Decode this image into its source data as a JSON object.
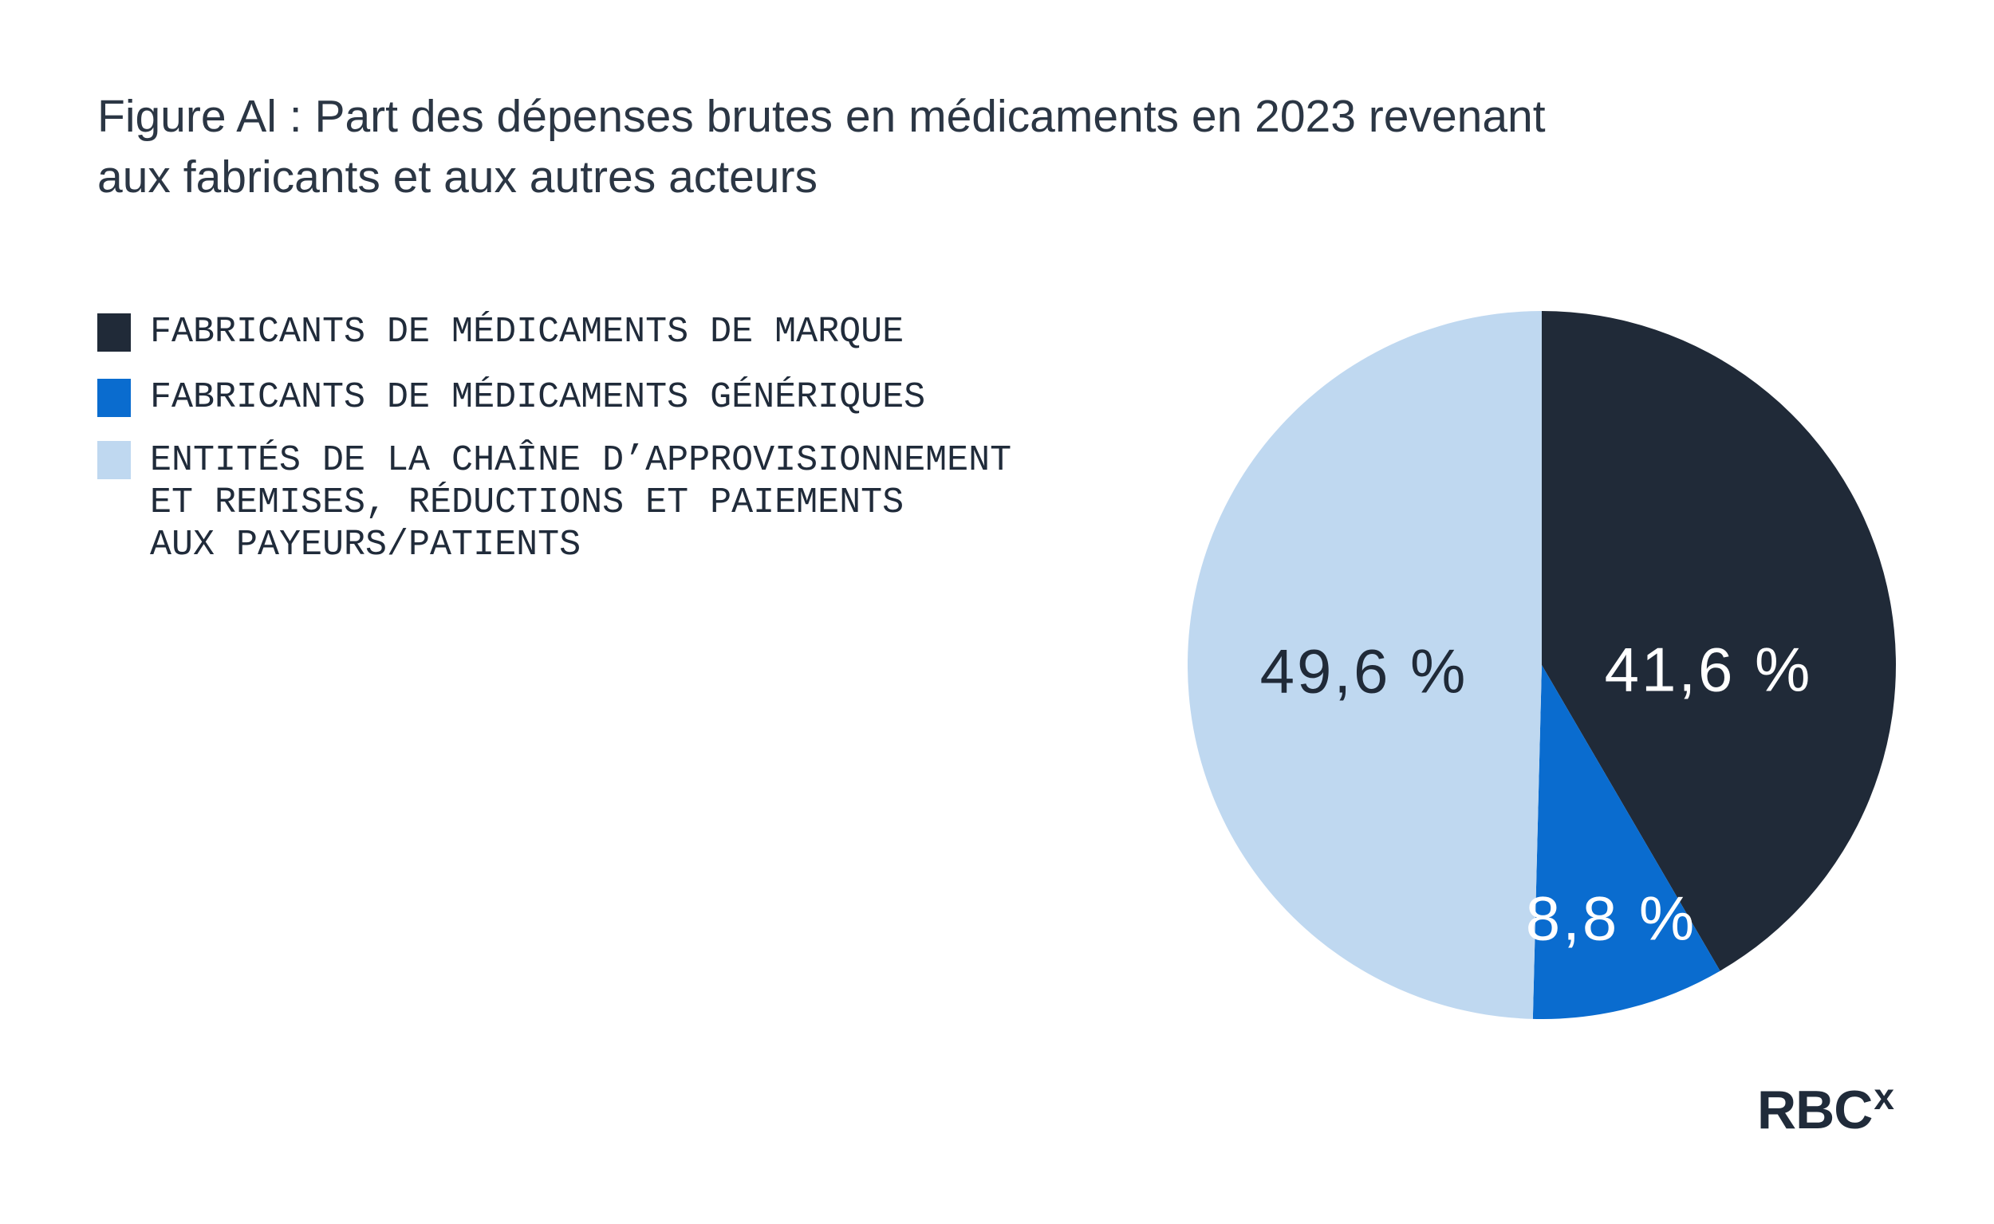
{
  "figure": {
    "title_lines": [
      "Figure Al : Part des dépenses brutes en médicaments en 2023 revenant",
      "aux fabricants et aux autres acteurs"
    ]
  },
  "legend": {
    "items": [
      {
        "color": "#202a38",
        "lines": [
          "FABRICANTS DE MÉDICAMENTS DE MARQUE"
        ]
      },
      {
        "color": "#0a6ccf",
        "lines": [
          "FABRICANTS DE MÉDICAMENTS GÉNÉRIQUES"
        ]
      },
      {
        "color": "#bfd8f0",
        "lines": [
          "ENTITÉS DE LA CHAÎNE D’APPROVISIONNEMENT",
          "ET REMISES, RÉDUCTIONS ET PAIEMENTS",
          "AUX PAYEURS/PATIENTS"
        ]
      }
    ]
  },
  "chart_data": {
    "type": "pie",
    "title": "Part des dépenses brutes en médicaments en 2023 revenant aux fabricants et aux autres acteurs",
    "start_angle_deg": 0,
    "direction": "clockwise",
    "legend_position": "left",
    "categories": [
      "Fabricants de médicaments de marque",
      "Fabricants de médicaments génériques",
      "Entités de la chaîne d’approvisionnement et remises, réductions et paiements aux payeurs/patients"
    ],
    "values": [
      41.6,
      8.8,
      49.6
    ],
    "slices": [
      {
        "label": "Fabricants de médicaments de marque",
        "value": 41.6,
        "display": "41,6 %",
        "color": "#202a38",
        "label_color": "#ffffff"
      },
      {
        "label": "Fabricants de médicaments génériques",
        "value": 8.8,
        "display": "8,8 %",
        "color": "#0a6ccf",
        "label_color": "#ffffff"
      },
      {
        "label": "Entités de la chaîne d’approvisionnement et remises, réductions et paiements aux payeurs/patients",
        "value": 49.6,
        "display": "49,6 %",
        "color": "#bfd8f0",
        "label_color": "#202a38"
      }
    ]
  },
  "logo": {
    "text": "RBC",
    "sup": "x"
  }
}
